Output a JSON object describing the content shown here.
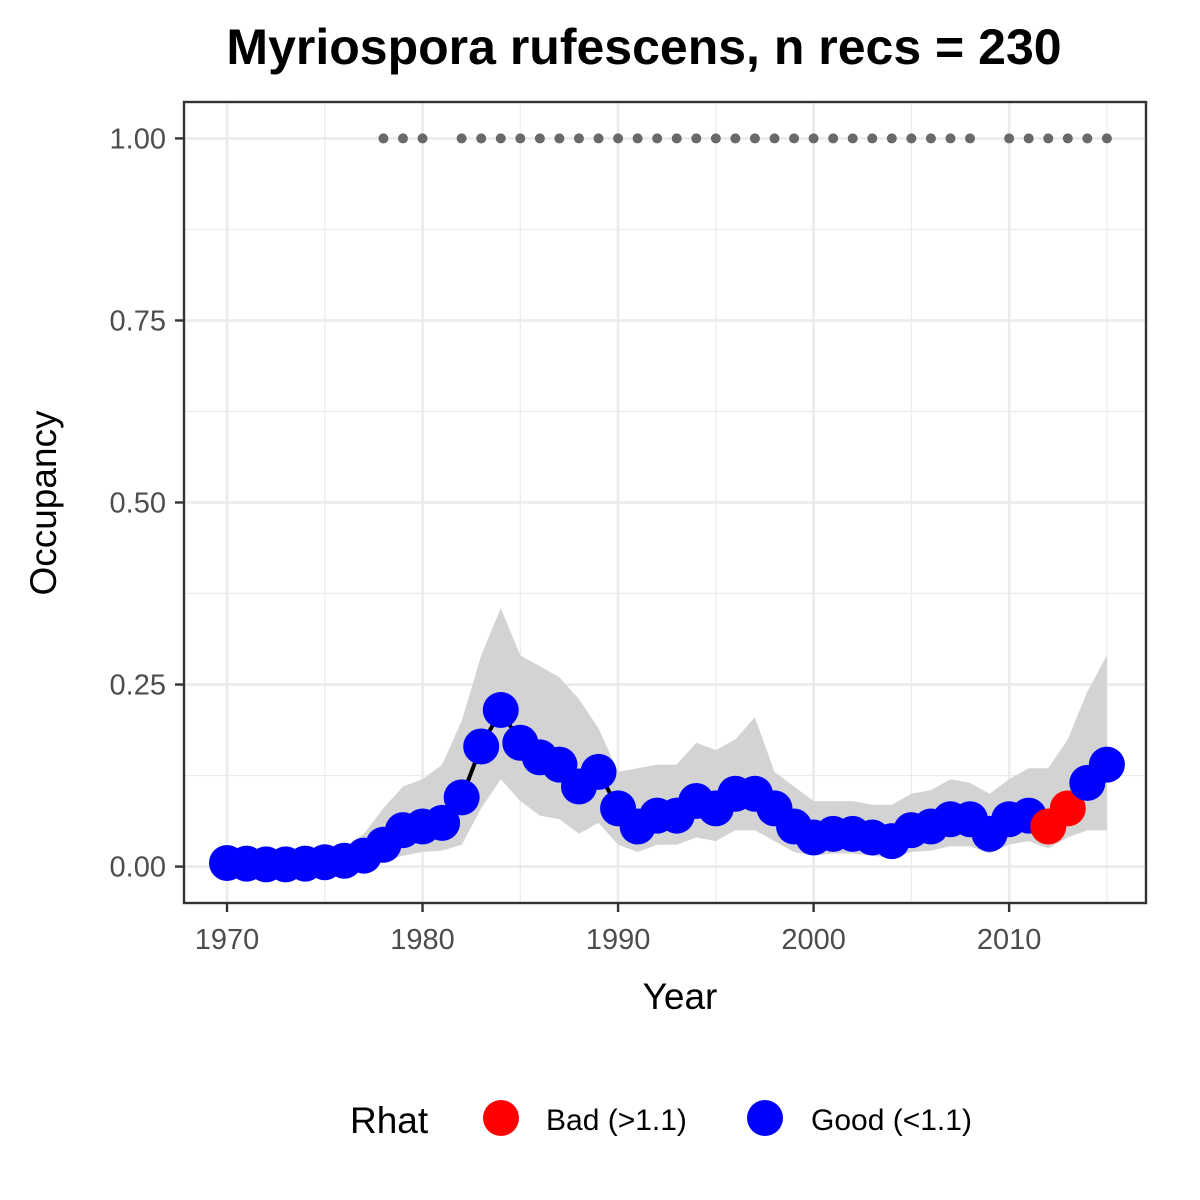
{
  "chart_data": {
    "type": "line",
    "title": "Myriospora rufescens, n recs = 230",
    "xlabel": "Year",
    "ylabel": "Occupancy",
    "xlim": [
      1967.8,
      2017
    ],
    "ylim": [
      -0.05,
      1.05
    ],
    "x_ticks": [
      1970,
      1980,
      1990,
      2000,
      2010
    ],
    "x_tick_labels": [
      "1970",
      "1980",
      "1990",
      "2000",
      "2010"
    ],
    "y_ticks": [
      0,
      0.25,
      0.5,
      0.75,
      1
    ],
    "y_tick_labels": [
      "0.00",
      "0.25",
      "0.50",
      "0.75",
      "1.00"
    ],
    "grid": true,
    "legend": {
      "title": "Rhat",
      "position": "bottom",
      "entries": [
        {
          "label": "Bad (>1.1)",
          "color": "#ff0000"
        },
        {
          "label": "Good (<1.1)",
          "color": "#0000ff"
        }
      ]
    },
    "colors": {
      "good": "#0000ff",
      "bad": "#ff0000",
      "ribbon": "#d3d3d3",
      "line": "#000000",
      "record_dots": "#696969",
      "panel_border": "#333333",
      "grid": "#ebebeb"
    },
    "series": [
      {
        "x": [
          1970,
          1971,
          1972,
          1973,
          1974,
          1975,
          1976,
          1977,
          1978,
          1979,
          1980,
          1981,
          1982,
          1983,
          1984,
          1985,
          1986,
          1987,
          1988,
          1989,
          1990,
          1991,
          1992,
          1993,
          1994,
          1995,
          1996,
          1997,
          1998,
          1999,
          2000,
          2001,
          2002,
          2003,
          2004,
          2005,
          2006,
          2007,
          2008,
          2009,
          2010,
          2011,
          2012,
          2013,
          2014,
          2015
        ],
        "y": [
          0.005,
          0.004,
          0.003,
          0.003,
          0.004,
          0.006,
          0.008,
          0.015,
          0.03,
          0.05,
          0.055,
          0.06,
          0.095,
          0.165,
          0.215,
          0.17,
          0.15,
          0.14,
          0.11,
          0.13,
          0.08,
          0.055,
          0.07,
          0.07,
          0.09,
          0.08,
          0.1,
          0.1,
          0.08,
          0.055,
          0.04,
          0.045,
          0.045,
          0.04,
          0.035,
          0.05,
          0.055,
          0.065,
          0.065,
          0.045,
          0.065,
          0.07,
          0.055,
          0.08,
          0.115,
          0.14
        ],
        "lower": [
          0.0,
          0.0,
          0.0,
          0.0,
          0.0,
          0.0,
          0.0,
          0.002,
          0.008,
          0.015,
          0.02,
          0.022,
          0.03,
          0.08,
          0.12,
          0.09,
          0.07,
          0.065,
          0.045,
          0.06,
          0.03,
          0.02,
          0.03,
          0.03,
          0.04,
          0.035,
          0.05,
          0.05,
          0.035,
          0.02,
          0.015,
          0.018,
          0.018,
          0.015,
          0.012,
          0.02,
          0.022,
          0.028,
          0.028,
          0.018,
          0.03,
          0.035,
          0.025,
          0.04,
          0.05,
          0.05
        ],
        "upper": [
          0.01,
          0.01,
          0.01,
          0.01,
          0.012,
          0.015,
          0.025,
          0.045,
          0.08,
          0.11,
          0.12,
          0.14,
          0.2,
          0.29,
          0.355,
          0.29,
          0.275,
          0.26,
          0.23,
          0.19,
          0.13,
          0.135,
          0.14,
          0.14,
          0.17,
          0.16,
          0.175,
          0.205,
          0.13,
          0.11,
          0.09,
          0.09,
          0.09,
          0.085,
          0.085,
          0.1,
          0.105,
          0.12,
          0.115,
          0.1,
          0.12,
          0.135,
          0.135,
          0.175,
          0.24,
          0.29
        ],
        "rhat": [
          "Good",
          "Good",
          "Good",
          "Good",
          "Good",
          "Good",
          "Good",
          "Good",
          "Good",
          "Good",
          "Good",
          "Good",
          "Good",
          "Good",
          "Good",
          "Good",
          "Good",
          "Good",
          "Good",
          "Good",
          "Good",
          "Good",
          "Good",
          "Good",
          "Good",
          "Good",
          "Good",
          "Good",
          "Good",
          "Good",
          "Good",
          "Good",
          "Good",
          "Good",
          "Good",
          "Good",
          "Good",
          "Good",
          "Good",
          "Good",
          "Good",
          "Good",
          "Bad",
          "Bad",
          "Good",
          "Good"
        ]
      }
    ],
    "record_years": [
      1978,
      1979,
      1980,
      1982,
      1983,
      1984,
      1985,
      1986,
      1987,
      1988,
      1989,
      1990,
      1991,
      1992,
      1993,
      1994,
      1995,
      1996,
      1997,
      1998,
      1999,
      2000,
      2001,
      2002,
      2003,
      2004,
      2005,
      2006,
      2007,
      2008,
      2010,
      2011,
      2012,
      2013,
      2014,
      2015
    ],
    "record_y": 1.0
  }
}
